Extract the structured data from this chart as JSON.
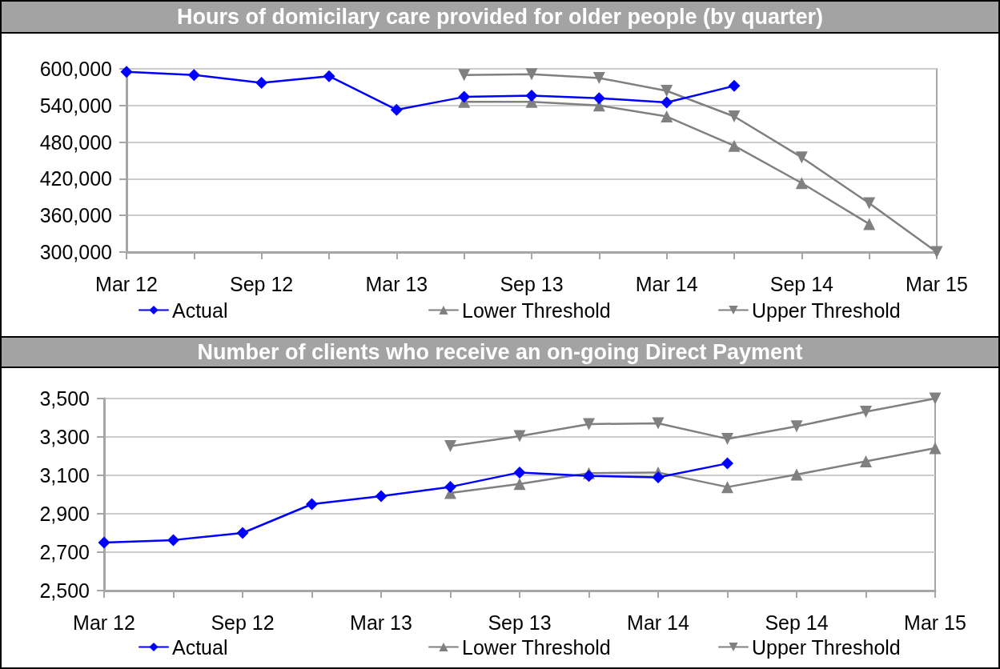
{
  "chart_data": [
    {
      "type": "line",
      "title": "Hours of domicilary care provided for older people (by quarter)",
      "categories": [
        "Mar 12",
        null,
        "Sep 12",
        null,
        "Mar 13",
        null,
        "Sep 13",
        null,
        "Mar 14",
        null,
        "Sep 14",
        null,
        "Mar 15"
      ],
      "series": [
        {
          "name": "Actual",
          "color": "#0000ff",
          "marker": "diamond",
          "values": [
            595000,
            590000,
            577000,
            588000,
            533000,
            554000,
            556000,
            552000,
            545000,
            572000,
            null,
            null,
            null
          ]
        },
        {
          "name": "Lower Threshold",
          "color": "#808080",
          "marker": "triangle",
          "values": [
            null,
            null,
            null,
            null,
            null,
            546000,
            546000,
            540000,
            522000,
            474000,
            413000,
            346000,
            null
          ]
        },
        {
          "name": "Upper Threshold",
          "color": "#808080",
          "marker": "triangle-down",
          "values": [
            null,
            null,
            null,
            null,
            null,
            590000,
            591000,
            585000,
            564000,
            522000,
            455000,
            380000,
            300000
          ]
        }
      ],
      "ylim": [
        300000,
        600000
      ],
      "yticks": [
        {
          "value": 300000,
          "label": "300,000"
        },
        {
          "value": 360000,
          "label": "360,000"
        },
        {
          "value": 420000,
          "label": "420,000"
        },
        {
          "value": 480000,
          "label": "480,000"
        },
        {
          "value": 540000,
          "label": "540,000"
        },
        {
          "value": 600000,
          "label": "600,000"
        }
      ],
      "grid": "y",
      "legend": "bottom"
    },
    {
      "type": "line",
      "title": "Number of clients who receive an on-going Direct Payment",
      "categories": [
        "Mar 12",
        null,
        "Sep 12",
        null,
        "Mar 13",
        null,
        "Sep 13",
        null,
        "Mar 14",
        null,
        "Sep 14",
        null,
        "Mar 15"
      ],
      "series": [
        {
          "name": "Actual",
          "color": "#0000ff",
          "marker": "diamond",
          "values": [
            2750,
            2763,
            2800,
            2950,
            2992,
            3040,
            3115,
            3097,
            3090,
            3162,
            null,
            null,
            null
          ]
        },
        {
          "name": "Lower Threshold",
          "color": "#808080",
          "marker": "triangle",
          "values": [
            null,
            null,
            null,
            null,
            null,
            3008,
            3055,
            3111,
            3115,
            3039,
            3104,
            3173,
            3242
          ]
        },
        {
          "name": "Upper Threshold",
          "color": "#808080",
          "marker": "triangle-down",
          "values": [
            null,
            null,
            null,
            null,
            null,
            3252,
            3304,
            3367,
            3371,
            3290,
            3355,
            3431,
            3500
          ]
        }
      ],
      "ylim": [
        2500,
        3500
      ],
      "yticks": [
        {
          "value": 2500,
          "label": "2,500"
        },
        {
          "value": 2700,
          "label": "2,700"
        },
        {
          "value": 2900,
          "label": "2,900"
        },
        {
          "value": 3100,
          "label": "3,100"
        },
        {
          "value": 3300,
          "label": "3,300"
        },
        {
          "value": 3500,
          "label": "3,500"
        }
      ],
      "grid": "y",
      "legend": "bottom"
    }
  ]
}
